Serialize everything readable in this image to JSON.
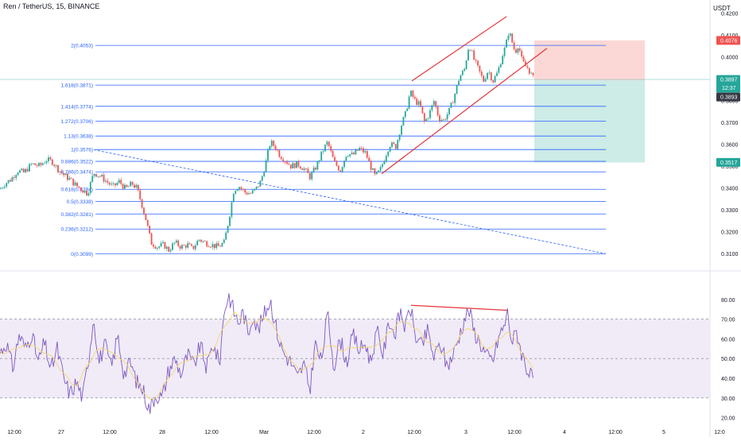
{
  "header": {
    "symbol_title": "Ren / TetherUS, 15, BINANCE",
    "currency": "USDT"
  },
  "colors": {
    "bull": "#26a69a",
    "bear": "#ef5350",
    "fib_line": "#2962ff",
    "fib_label": "#2962ff",
    "channel": "#e5353b",
    "trend_dashed": "#2962ff",
    "stop_zone": "#fbd8d6",
    "target_zone": "#cdebe7",
    "rsi_line": "#7e57c2",
    "rsi_ma": "#f5d76e",
    "rsi_band": "#ede7f6",
    "axis_text": "#131722"
  },
  "chart_data": [
    {
      "type": "candlestick",
      "title": "Ren / TetherUS, 15, BINANCE",
      "ylabel": "USDT",
      "ylim": [
        0.306,
        0.421
      ],
      "price_axis_ticks": [
        0.31,
        0.32,
        0.33,
        0.34,
        0.35,
        0.36,
        0.37,
        0.38,
        0.39,
        0.4,
        0.41,
        0.42
      ],
      "price_axis_tick_labels": [
        "0.3100",
        "0.3200",
        "0.3300",
        "0.3400",
        "0.3500",
        "0.3600",
        "0.3700",
        "0.3800",
        "0.3900",
        "0.4000",
        "0.4100",
        "0.4200"
      ],
      "time_axis_labels": [
        "12:00",
        "27",
        "12:00",
        "28",
        "12:00",
        "Mar",
        "12:00",
        "2",
        "12:00",
        "3",
        "12:00",
        "4",
        "12:00",
        "5",
        "12:0"
      ],
      "price_tags": [
        {
          "label": "0.4076",
          "value": 0.4076,
          "color": "#ef5350"
        },
        {
          "label": "0.3897",
          "value": 0.3897,
          "color": "#26a69a",
          "countdown": "12:37"
        },
        {
          "label": "0.3893",
          "value": 0.3893,
          "color": "#363a45"
        },
        {
          "label": "0.3517",
          "value": 0.3517,
          "color": "#26a69a"
        }
      ],
      "close_path": [
        [
          0,
          0.3395
        ],
        [
          6,
          0.342
        ],
        [
          14,
          0.344
        ],
        [
          22,
          0.348
        ],
        [
          30,
          0.347
        ],
        [
          40,
          0.351
        ],
        [
          50,
          0.35
        ],
        [
          58,
          0.353
        ],
        [
          66,
          0.352
        ],
        [
          72,
          0.349
        ],
        [
          80,
          0.346
        ],
        [
          88,
          0.344
        ],
        [
          96,
          0.341
        ],
        [
          104,
          0.339
        ],
        [
          110,
          0.3375
        ],
        [
          118,
          0.347
        ],
        [
          126,
          0.3455
        ],
        [
          134,
          0.343
        ],
        [
          142,
          0.3405
        ],
        [
          150,
          0.343
        ],
        [
          158,
          0.3395
        ],
        [
          166,
          0.342
        ],
        [
          172,
          0.34
        ],
        [
          178,
          0.333
        ],
        [
          184,
          0.325
        ],
        [
          190,
          0.315
        ],
        [
          198,
          0.313
        ],
        [
          206,
          0.314
        ],
        [
          212,
          0.3115
        ],
        [
          220,
          0.315
        ],
        [
          228,
          0.313
        ],
        [
          236,
          0.314
        ],
        [
          242,
          0.312
        ],
        [
          250,
          0.3165
        ],
        [
          258,
          0.315
        ],
        [
          266,
          0.314
        ],
        [
          274,
          0.313
        ],
        [
          282,
          0.315
        ],
        [
          288,
          0.326
        ],
        [
          294,
          0.339
        ],
        [
          300,
          0.341
        ],
        [
          308,
          0.338
        ],
        [
          316,
          0.3375
        ],
        [
          322,
          0.3395
        ],
        [
          328,
          0.343
        ],
        [
          334,
          0.351
        ],
        [
          340,
          0.361
        ],
        [
          346,
          0.359
        ],
        [
          352,
          0.355
        ],
        [
          358,
          0.353
        ],
        [
          366,
          0.35
        ],
        [
          374,
          0.351
        ],
        [
          382,
          0.349
        ],
        [
          390,
          0.345
        ],
        [
          398,
          0.35
        ],
        [
          406,
          0.357
        ],
        [
          412,
          0.361
        ],
        [
          420,
          0.352
        ],
        [
          428,
          0.348
        ],
        [
          436,
          0.356
        ],
        [
          444,
          0.355
        ],
        [
          452,
          0.358
        ],
        [
          460,
          0.356
        ],
        [
          466,
          0.35
        ],
        [
          472,
          0.345
        ],
        [
          478,
          0.348
        ],
        [
          484,
          0.354
        ],
        [
          490,
          0.36
        ],
        [
          498,
          0.359
        ],
        [
          504,
          0.368
        ],
        [
          510,
          0.374
        ],
        [
          516,
          0.384
        ],
        [
          522,
          0.38
        ],
        [
          528,
          0.378
        ],
        [
          534,
          0.37
        ],
        [
          540,
          0.374
        ],
        [
          546,
          0.38
        ],
        [
          552,
          0.372
        ],
        [
          558,
          0.371
        ],
        [
          566,
          0.376
        ],
        [
          572,
          0.383
        ],
        [
          578,
          0.391
        ],
        [
          584,
          0.394
        ],
        [
          590,
          0.406
        ],
        [
          596,
          0.399
        ],
        [
          602,
          0.394
        ],
        [
          608,
          0.389
        ],
        [
          614,
          0.394
        ],
        [
          620,
          0.389
        ],
        [
          626,
          0.393
        ],
        [
          632,
          0.401
        ],
        [
          636,
          0.405
        ],
        [
          640,
          0.412
        ],
        [
          644,
          0.407
        ],
        [
          648,
          0.402
        ],
        [
          652,
          0.406
        ],
        [
          656,
          0.399
        ],
        [
          660,
          0.396
        ],
        [
          664,
          0.395
        ],
        [
          668,
          0.392
        ],
        [
          672,
          0.3893
        ]
      ]
    },
    {
      "type": "fibonacci-retracement",
      "levels": [
        {
          "ratio": "2",
          "value": 0.4053,
          "label": "2(0.4053)"
        },
        {
          "ratio": "1.618",
          "value": 0.3871,
          "label": "1.618(0.3871)"
        },
        {
          "ratio": "1.414",
          "value": 0.3774,
          "label": "1.414(0.3774)"
        },
        {
          "ratio": "1.272",
          "value": 0.3706,
          "label": "1.272(0.3706)"
        },
        {
          "ratio": "1.13",
          "value": 0.3638,
          "label": "1.13(0.3638)"
        },
        {
          "ratio": "1",
          "value": 0.3576,
          "label": "1(0.3576)"
        },
        {
          "ratio": "0.886",
          "value": 0.3522,
          "label": "0.886(0.3522)"
        },
        {
          "ratio": "0.786",
          "value": 0.3474,
          "label": "0.786(0.3474)"
        },
        {
          "ratio": "0.618",
          "value": 0.3394,
          "label": "0.618(0.3394)"
        },
        {
          "ratio": "0.5",
          "value": 0.3338,
          "label": "0.5(0.3338)"
        },
        {
          "ratio": "0.382",
          "value": 0.3281,
          "label": "0.382(0.3281)"
        },
        {
          "ratio": "0.236",
          "value": 0.3212,
          "label": "0.236(0.3212)"
        },
        {
          "ratio": "0",
          "value": 0.3099,
          "label": "0(0.3099)"
        }
      ]
    },
    {
      "type": "line",
      "title": "RSI",
      "ylim": [
        15,
        90
      ],
      "tick_labels": [
        "80.00",
        "70.00",
        "60.00",
        "50.00",
        "40.00",
        "30.00",
        "20.00"
      ],
      "ticks": [
        80,
        70,
        60,
        50,
        40,
        30,
        20
      ],
      "bands": {
        "upper": 70,
        "middle": 50,
        "lower": 30
      },
      "rsi_path": [
        [
          0,
          53
        ],
        [
          8,
          58
        ],
        [
          16,
          45
        ],
        [
          24,
          62
        ],
        [
          32,
          55
        ],
        [
          40,
          63
        ],
        [
          48,
          48
        ],
        [
          56,
          58
        ],
        [
          64,
          44
        ],
        [
          72,
          55
        ],
        [
          80,
          40
        ],
        [
          88,
          32
        ],
        [
          96,
          38
        ],
        [
          104,
          30
        ],
        [
          112,
          52
        ],
        [
          118,
          72
        ],
        [
          124,
          48
        ],
        [
          132,
          57
        ],
        [
          140,
          45
        ],
        [
          148,
          62
        ],
        [
          156,
          42
        ],
        [
          164,
          48
        ],
        [
          172,
          38
        ],
        [
          180,
          34
        ],
        [
          188,
          24
        ],
        [
          196,
          32
        ],
        [
          204,
          30
        ],
        [
          212,
          44
        ],
        [
          220,
          50
        ],
        [
          228,
          42
        ],
        [
          236,
          52
        ],
        [
          244,
          46
        ],
        [
          252,
          57
        ],
        [
          260,
          45
        ],
        [
          268,
          58
        ],
        [
          276,
          47
        ],
        [
          282,
          75
        ],
        [
          288,
          82
        ],
        [
          294,
          74
        ],
        [
          300,
          68
        ],
        [
          306,
          74
        ],
        [
          312,
          62
        ],
        [
          318,
          73
        ],
        [
          324,
          64
        ],
        [
          332,
          72
        ],
        [
          340,
          80
        ],
        [
          346,
          68
        ],
        [
          352,
          58
        ],
        [
          358,
          52
        ],
        [
          366,
          48
        ],
        [
          374,
          40
        ],
        [
          382,
          47
        ],
        [
          390,
          34
        ],
        [
          396,
          58
        ],
        [
          404,
          48
        ],
        [
          412,
          73
        ],
        [
          420,
          46
        ],
        [
          428,
          60
        ],
        [
          436,
          48
        ],
        [
          444,
          62
        ],
        [
          452,
          54
        ],
        [
          460,
          58
        ],
        [
          466,
          48
        ],
        [
          474,
          64
        ],
        [
          482,
          52
        ],
        [
          490,
          70
        ],
        [
          496,
          62
        ],
        [
          504,
          74
        ],
        [
          510,
          65
        ],
        [
          516,
          77
        ],
        [
          522,
          62
        ],
        [
          530,
          56
        ],
        [
          538,
          64
        ],
        [
          546,
          50
        ],
        [
          554,
          58
        ],
        [
          562,
          46
        ],
        [
          570,
          52
        ],
        [
          578,
          62
        ],
        [
          584,
          70
        ],
        [
          590,
          75
        ],
        [
          596,
          64
        ],
        [
          604,
          58
        ],
        [
          612,
          51
        ],
        [
          620,
          49
        ],
        [
          628,
          62
        ],
        [
          634,
          66
        ],
        [
          638,
          74
        ],
        [
          644,
          58
        ],
        [
          650,
          64
        ],
        [
          656,
          53
        ],
        [
          662,
          46
        ],
        [
          668,
          40
        ],
        [
          672,
          42
        ]
      ]
    }
  ]
}
